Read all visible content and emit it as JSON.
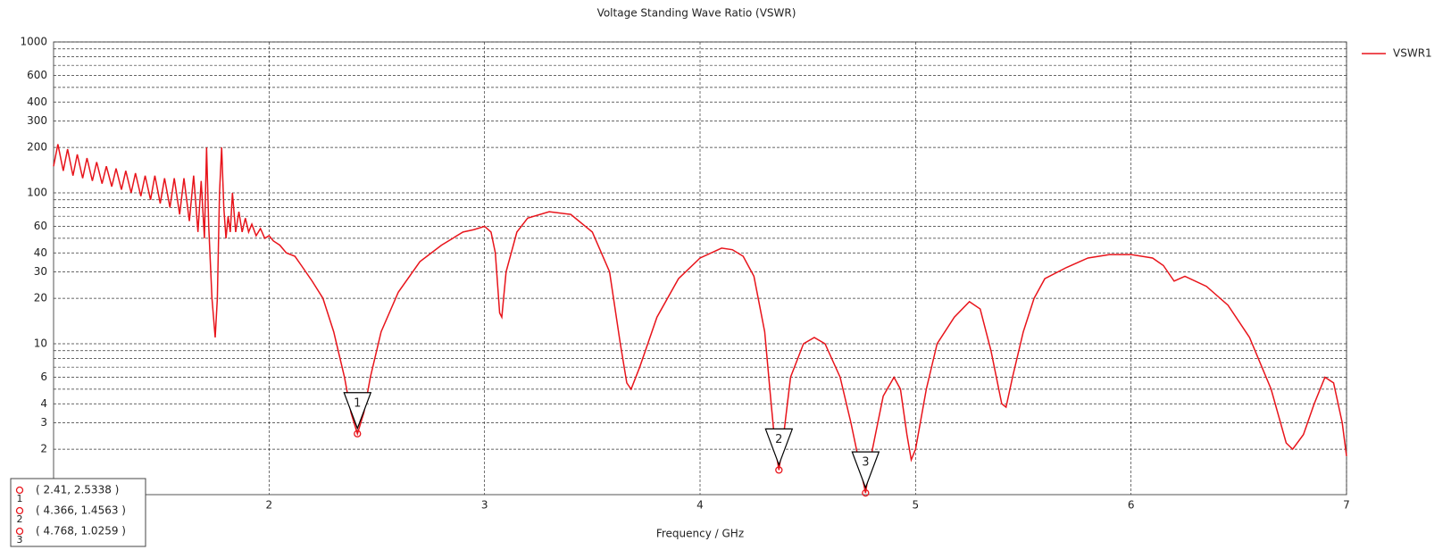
{
  "chart_data": {
    "type": "line",
    "title": "Voltage Standing Wave Ratio (VSWR)",
    "xlabel": "Frequency / GHz",
    "log_y": true,
    "grid": true,
    "legend": "right",
    "xlim": [
      1,
      7
    ],
    "ylim": [
      1,
      1000
    ],
    "xticks": [
      2,
      3,
      4,
      5,
      6,
      7
    ],
    "yticks": [
      2,
      3,
      4,
      6,
      10,
      20,
      30,
      40,
      60,
      100,
      200,
      300,
      400,
      600,
      1000
    ],
    "minor_yticks": [
      5,
      7,
      8,
      9,
      50,
      70,
      80,
      90,
      500,
      700,
      800,
      900
    ],
    "x": [
      1.0,
      1.02,
      1.045,
      1.065,
      1.09,
      1.11,
      1.135,
      1.155,
      1.18,
      1.2,
      1.225,
      1.245,
      1.27,
      1.29,
      1.315,
      1.335,
      1.36,
      1.38,
      1.405,
      1.425,
      1.45,
      1.47,
      1.495,
      1.515,
      1.54,
      1.56,
      1.585,
      1.605,
      1.63,
      1.65,
      1.67,
      1.685,
      1.7,
      1.71,
      1.72,
      1.735,
      1.75,
      1.76,
      1.77,
      1.78,
      1.79,
      1.8,
      1.81,
      1.82,
      1.83,
      1.845,
      1.86,
      1.875,
      1.89,
      1.905,
      1.92,
      1.94,
      1.96,
      1.98,
      2.0,
      2.02,
      2.05,
      2.08,
      2.12,
      2.15,
      2.2,
      2.25,
      2.3,
      2.35,
      2.38,
      2.41,
      2.44,
      2.47,
      2.52,
      2.6,
      2.7,
      2.8,
      2.9,
      2.95,
      3.0,
      3.03,
      3.05,
      3.07,
      3.08,
      3.1,
      3.15,
      3.2,
      3.3,
      3.4,
      3.5,
      3.58,
      3.63,
      3.66,
      3.68,
      3.72,
      3.8,
      3.9,
      4.0,
      4.1,
      4.15,
      4.2,
      4.25,
      4.3,
      4.33,
      4.35,
      4.366,
      4.38,
      4.42,
      4.48,
      4.53,
      4.58,
      4.65,
      4.7,
      4.74,
      4.768,
      4.8,
      4.85,
      4.9,
      4.93,
      4.96,
      4.98,
      5.0,
      5.05,
      5.1,
      5.18,
      5.25,
      5.3,
      5.35,
      5.4,
      5.42,
      5.45,
      5.5,
      5.55,
      5.6,
      5.7,
      5.8,
      5.9,
      6.0,
      6.1,
      6.15,
      6.2,
      6.25,
      6.35,
      6.45,
      6.55,
      6.65,
      6.72,
      6.75,
      6.8,
      6.85,
      6.9,
      6.94,
      6.98,
      7.0
    ],
    "series": [
      {
        "name": "VSWR1",
        "color": "#e8141b",
        "values": [
          150,
          210,
          140,
          195,
          130,
          180,
          125,
          170,
          120,
          160,
          115,
          150,
          110,
          145,
          105,
          140,
          100,
          135,
          95,
          130,
          90,
          130,
          85,
          125,
          80,
          125,
          72,
          125,
          65,
          130,
          55,
          120,
          50,
          200,
          60,
          20,
          11,
          20,
          100,
          200,
          80,
          50,
          70,
          55,
          100,
          55,
          75,
          55,
          68,
          55,
          62,
          52,
          58,
          50,
          52,
          48,
          45,
          40,
          38,
          33,
          26,
          20,
          12,
          6,
          3.5,
          2.5338,
          3.5,
          6,
          12,
          22,
          35,
          45,
          55,
          57,
          60,
          55,
          40,
          16,
          15,
          30,
          55,
          68,
          75,
          72,
          55,
          30,
          10,
          5.5,
          5,
          7,
          15,
          27,
          37,
          43,
          42,
          38,
          28,
          12,
          4,
          2,
          1.4563,
          2,
          6,
          10,
          11,
          10,
          6,
          3,
          1.6,
          1.0259,
          2,
          4.5,
          6,
          5,
          2.5,
          1.7,
          2,
          5,
          10,
          15,
          19,
          17,
          9,
          4,
          3.8,
          6,
          12,
          20,
          27,
          32,
          37,
          39,
          39,
          37,
          33,
          26,
          28,
          24,
          18,
          11,
          5,
          2.2,
          2,
          2.5,
          4,
          6,
          5.5,
          3,
          1.8
        ]
      }
    ],
    "markers": [
      {
        "label": "1",
        "x": 2.41,
        "y": 2.5338,
        "text": "( 2.41, 2.5338 )"
      },
      {
        "label": "2",
        "x": 4.366,
        "y": 1.4563,
        "text": "( 4.366, 1.4563 )"
      },
      {
        "label": "3",
        "x": 4.768,
        "y": 1.0259,
        "text": "( 4.768, 1.0259 )"
      }
    ]
  }
}
